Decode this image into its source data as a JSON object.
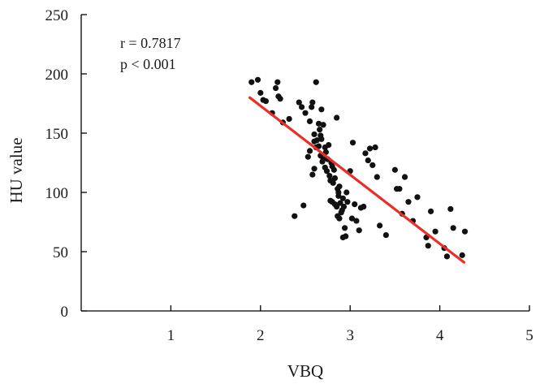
{
  "chart_data": {
    "type": "scatter",
    "title": "",
    "xlabel": "VBQ",
    "ylabel": "HU value",
    "xlim": [
      0,
      5
    ],
    "ylim": [
      0,
      250
    ],
    "x_ticks": [
      "1",
      "2",
      "3",
      "4",
      "5"
    ],
    "y_ticks": [
      "0",
      "50",
      "100",
      "150",
      "200",
      "250"
    ],
    "grid": false,
    "annotations": [
      "r = 0.7817",
      "p < 0.001"
    ],
    "colors": {
      "points": "#111111",
      "regression": "#e8302a",
      "axis": "#000000"
    },
    "regression_line": {
      "x": [
        1.88,
        4.27
      ],
      "y": [
        180,
        41
      ]
    },
    "series": [
      {
        "points": [
          [
            1.9,
            193
          ],
          [
            1.97,
            195
          ],
          [
            2.0,
            184
          ],
          [
            2.03,
            178
          ],
          [
            2.06,
            177
          ],
          [
            2.13,
            167
          ],
          [
            2.17,
            188
          ],
          [
            2.19,
            193
          ],
          [
            2.2,
            181
          ],
          [
            2.22,
            179
          ],
          [
            2.25,
            159
          ],
          [
            2.32,
            162
          ],
          [
            2.38,
            80
          ],
          [
            2.43,
            176
          ],
          [
            2.46,
            172
          ],
          [
            2.48,
            89
          ],
          [
            2.5,
            167
          ],
          [
            2.53,
            130
          ],
          [
            2.55,
            135
          ],
          [
            2.58,
            176
          ],
          [
            2.62,
            193
          ],
          [
            2.55,
            160
          ],
          [
            2.57,
            172
          ],
          [
            2.6,
            149
          ],
          [
            2.6,
            143
          ],
          [
            2.62,
            138
          ],
          [
            2.65,
            158
          ],
          [
            2.66,
            153
          ],
          [
            2.67,
            148
          ],
          [
            2.68,
            145
          ],
          [
            2.68,
            170
          ],
          [
            2.7,
            157
          ],
          [
            2.72,
            138
          ],
          [
            2.73,
            134
          ],
          [
            2.63,
            144
          ],
          [
            2.65,
            139
          ],
          [
            2.67,
            131
          ],
          [
            2.69,
            126
          ],
          [
            2.7,
            128
          ],
          [
            2.72,
            121
          ],
          [
            2.74,
            118
          ],
          [
            2.75,
            128
          ],
          [
            2.76,
            140
          ],
          [
            2.58,
            115
          ],
          [
            2.6,
            120
          ],
          [
            2.77,
            114
          ],
          [
            2.78,
            110
          ],
          [
            2.79,
            125
          ],
          [
            2.8,
            122
          ],
          [
            2.81,
            108
          ],
          [
            2.82,
            119
          ],
          [
            2.83,
            112
          ],
          [
            2.85,
            163
          ],
          [
            2.86,
            103
          ],
          [
            2.87,
            100
          ],
          [
            2.78,
            93
          ],
          [
            2.8,
            92
          ],
          [
            2.83,
            90
          ],
          [
            2.85,
            88
          ],
          [
            2.87,
            97
          ],
          [
            2.88,
            105
          ],
          [
            2.89,
            91
          ],
          [
            2.9,
            83
          ],
          [
            2.91,
            85
          ],
          [
            2.92,
            95
          ],
          [
            2.93,
            88
          ],
          [
            2.86,
            80
          ],
          [
            2.88,
            78
          ],
          [
            2.94,
            70
          ],
          [
            2.92,
            62
          ],
          [
            2.95,
            63
          ],
          [
            2.96,
            100
          ],
          [
            2.97,
            92
          ],
          [
            3.0,
            118
          ],
          [
            3.02,
            78
          ],
          [
            3.03,
            142
          ],
          [
            3.05,
            90
          ],
          [
            3.07,
            76
          ],
          [
            3.1,
            68
          ],
          [
            3.12,
            87
          ],
          [
            3.15,
            88
          ],
          [
            3.17,
            133
          ],
          [
            3.2,
            127
          ],
          [
            3.22,
            137
          ],
          [
            3.25,
            123
          ],
          [
            3.28,
            138
          ],
          [
            3.3,
            113
          ],
          [
            3.33,
            72
          ],
          [
            3.4,
            64
          ],
          [
            3.5,
            119
          ],
          [
            3.52,
            103
          ],
          [
            3.55,
            103
          ],
          [
            3.58,
            82
          ],
          [
            3.61,
            113
          ],
          [
            3.65,
            92
          ],
          [
            3.7,
            76
          ],
          [
            3.75,
            96
          ],
          [
            3.85,
            62
          ],
          [
            3.87,
            55
          ],
          [
            3.9,
            84
          ],
          [
            3.95,
            67
          ],
          [
            4.05,
            53
          ],
          [
            4.08,
            46
          ],
          [
            4.12,
            86
          ],
          [
            4.15,
            70
          ],
          [
            4.25,
            47
          ],
          [
            4.28,
            67
          ]
        ]
      }
    ]
  }
}
